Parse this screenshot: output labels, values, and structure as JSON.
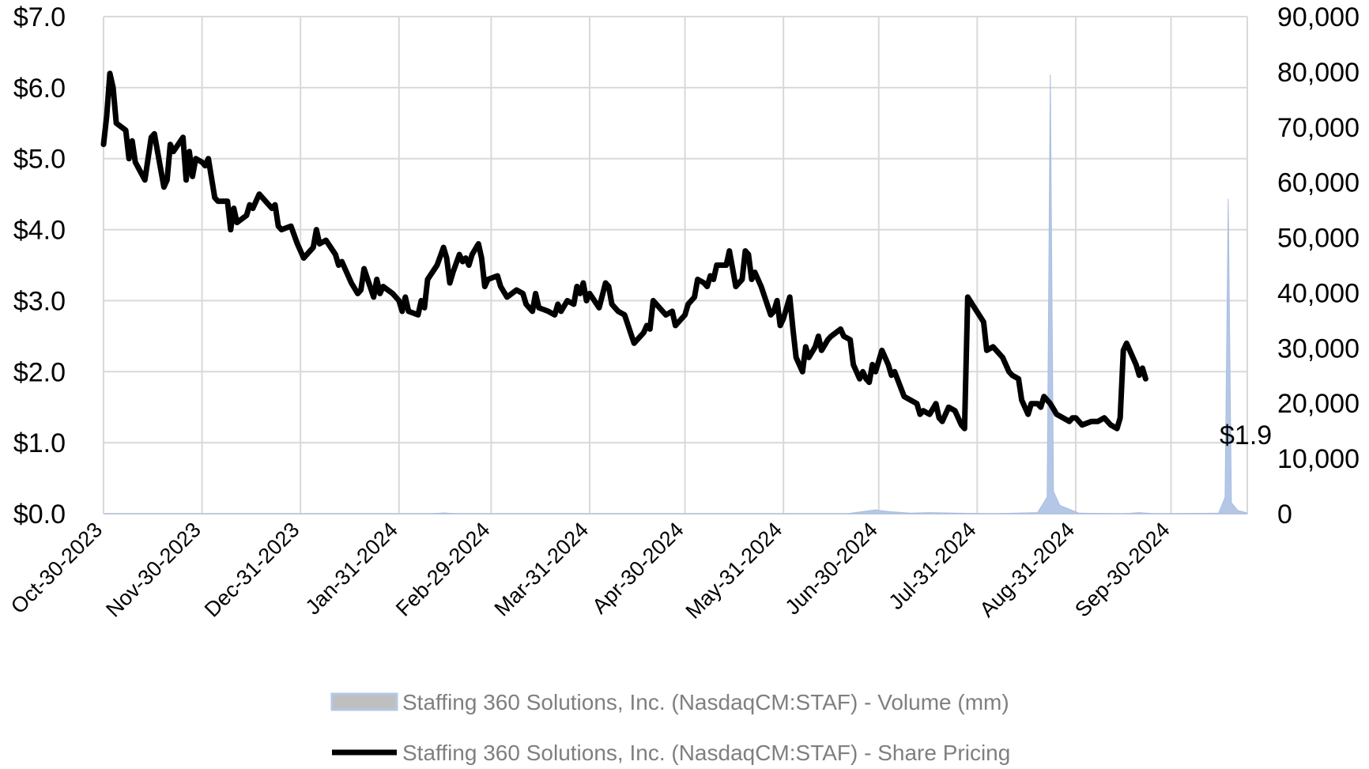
{
  "chart_data": {
    "type": "line",
    "title": "",
    "xlabel": "",
    "ylabel": "",
    "x_start": "2023-10-30",
    "x_end": "2024-10-24",
    "x_ticks": [
      "Oct-30-2023",
      "Nov-30-2023",
      "Dec-31-2023",
      "Jan-31-2024",
      "Feb-29-2024",
      "Mar-31-2024",
      "Apr-30-2024",
      "May-31-2024",
      "Jun-30-2024",
      "Jul-31-2024",
      "Aug-31-2024",
      "Sep-30-2024"
    ],
    "y_left": {
      "min": 0,
      "max": 7,
      "step": 1,
      "ticks": [
        "$0.0",
        "$1.0",
        "$2.0",
        "$3.0",
        "$4.0",
        "$5.0",
        "$6.0",
        "$7.0"
      ]
    },
    "y_right": {
      "min": 0,
      "max": 90000,
      "step": 10000,
      "ticks": [
        "0",
        "10,000",
        "20,000",
        "30,000",
        "40,000",
        "50,000",
        "60,000",
        "70,000",
        "80,000",
        "90,000"
      ]
    },
    "grid": true,
    "legend_position": "bottom",
    "end_label": "$1.9",
    "series": [
      {
        "name": "Staffing 360 Solutions, Inc. (NasdaqCM:STAF) - Volume (mm)",
        "type": "area",
        "axis": "right",
        "color": "#b4c7e7",
        "points": [
          [
            "2023-10-30",
            0
          ],
          [
            "2024-02-10",
            0
          ],
          [
            "2024-02-14",
            150
          ],
          [
            "2024-02-18",
            0
          ],
          [
            "2024-06-20",
            0
          ],
          [
            "2024-06-29",
            700
          ],
          [
            "2024-07-03",
            400
          ],
          [
            "2024-07-10",
            100
          ],
          [
            "2024-07-16",
            200
          ],
          [
            "2024-07-24",
            100
          ],
          [
            "2024-08-05",
            0
          ],
          [
            "2024-08-19",
            200
          ],
          [
            "2024-08-22",
            3000
          ],
          [
            "2024-08-23",
            79500
          ],
          [
            "2024-08-24",
            4000
          ],
          [
            "2024-08-26",
            1500
          ],
          [
            "2024-08-29",
            800
          ],
          [
            "2024-09-01",
            100
          ],
          [
            "2024-09-15",
            0
          ],
          [
            "2024-09-20",
            200
          ],
          [
            "2024-09-25",
            0
          ],
          [
            "2024-10-15",
            100
          ],
          [
            "2024-10-17",
            3000
          ],
          [
            "2024-10-18",
            57000
          ],
          [
            "2024-10-19",
            2000
          ],
          [
            "2024-10-21",
            600
          ],
          [
            "2024-10-23",
            300
          ],
          [
            "2024-10-24",
            100
          ]
        ]
      },
      {
        "name": "Staffing 360 Solutions, Inc. (NasdaqCM:STAF) - Share Pricing",
        "type": "line",
        "axis": "left",
        "color": "#000000",
        "points": [
          [
            "2023-10-30",
            5.2
          ],
          [
            "2023-10-31",
            5.6
          ],
          [
            "2023-11-01",
            6.2
          ],
          [
            "2023-11-02",
            6.0
          ],
          [
            "2023-11-03",
            5.5
          ],
          [
            "2023-11-06",
            5.4
          ],
          [
            "2023-11-07",
            5.0
          ],
          [
            "2023-11-08",
            5.25
          ],
          [
            "2023-11-09",
            4.95
          ],
          [
            "2023-11-12",
            4.7
          ],
          [
            "2023-11-14",
            5.3
          ],
          [
            "2023-11-15",
            5.35
          ],
          [
            "2023-11-18",
            4.6
          ],
          [
            "2023-11-19",
            4.7
          ],
          [
            "2023-11-20",
            5.2
          ],
          [
            "2023-11-21",
            5.1
          ],
          [
            "2023-11-24",
            5.3
          ],
          [
            "2023-11-25",
            4.7
          ],
          [
            "2023-11-26",
            5.1
          ],
          [
            "2023-11-27",
            4.75
          ],
          [
            "2023-11-28",
            5.0
          ],
          [
            "2023-11-30",
            4.95
          ],
          [
            "2023-12-01",
            4.9
          ],
          [
            "2023-12-02",
            5.0
          ],
          [
            "2023-12-04",
            4.45
          ],
          [
            "2023-12-05",
            4.4
          ],
          [
            "2023-12-08",
            4.4
          ],
          [
            "2023-12-09",
            4.0
          ],
          [
            "2023-12-10",
            4.3
          ],
          [
            "2023-12-11",
            4.1
          ],
          [
            "2023-12-14",
            4.2
          ],
          [
            "2023-12-15",
            4.35
          ],
          [
            "2023-12-16",
            4.3
          ],
          [
            "2023-12-18",
            4.5
          ],
          [
            "2023-12-22",
            4.3
          ],
          [
            "2023-12-23",
            4.35
          ],
          [
            "2023-12-24",
            4.05
          ],
          [
            "2023-12-25",
            4.0
          ],
          [
            "2023-12-28",
            4.05
          ],
          [
            "2023-12-30",
            3.8
          ],
          [
            "2024-01-01",
            3.6
          ],
          [
            "2024-01-04",
            3.75
          ],
          [
            "2024-01-05",
            4.0
          ],
          [
            "2024-01-06",
            3.8
          ],
          [
            "2024-01-08",
            3.85
          ],
          [
            "2024-01-11",
            3.65
          ],
          [
            "2024-01-12",
            3.5
          ],
          [
            "2024-01-13",
            3.55
          ],
          [
            "2024-01-16",
            3.25
          ],
          [
            "2024-01-18",
            3.1
          ],
          [
            "2024-01-19",
            3.15
          ],
          [
            "2024-01-20",
            3.45
          ],
          [
            "2024-01-23",
            3.05
          ],
          [
            "2024-01-24",
            3.3
          ],
          [
            "2024-01-25",
            3.1
          ],
          [
            "2024-01-26",
            3.2
          ],
          [
            "2024-01-29",
            3.1
          ],
          [
            "2024-01-31",
            3.0
          ],
          [
            "2024-02-01",
            2.85
          ],
          [
            "2024-02-02",
            3.05
          ],
          [
            "2024-02-03",
            2.85
          ],
          [
            "2024-02-06",
            2.8
          ],
          [
            "2024-02-07",
            3.0
          ],
          [
            "2024-02-08",
            2.9
          ],
          [
            "2024-02-09",
            3.3
          ],
          [
            "2024-02-12",
            3.5
          ],
          [
            "2024-02-14",
            3.75
          ],
          [
            "2024-02-15",
            3.6
          ],
          [
            "2024-02-16",
            3.25
          ],
          [
            "2024-02-17",
            3.4
          ],
          [
            "2024-02-19",
            3.65
          ],
          [
            "2024-02-20",
            3.55
          ],
          [
            "2024-02-21",
            3.6
          ],
          [
            "2024-02-22",
            3.5
          ],
          [
            "2024-02-23",
            3.65
          ],
          [
            "2024-02-25",
            3.8
          ],
          [
            "2024-02-26",
            3.6
          ],
          [
            "2024-02-27",
            3.2
          ],
          [
            "2024-02-28",
            3.3
          ],
          [
            "2024-03-02",
            3.35
          ],
          [
            "2024-03-03",
            3.2
          ],
          [
            "2024-03-05",
            3.05
          ],
          [
            "2024-03-08",
            3.15
          ],
          [
            "2024-03-10",
            3.1
          ],
          [
            "2024-03-11",
            2.95
          ],
          [
            "2024-03-13",
            2.85
          ],
          [
            "2024-03-14",
            3.1
          ],
          [
            "2024-03-15",
            2.9
          ],
          [
            "2024-03-18",
            2.85
          ],
          [
            "2024-03-20",
            2.8
          ],
          [
            "2024-03-21",
            2.95
          ],
          [
            "2024-03-22",
            2.85
          ],
          [
            "2024-03-24",
            3.0
          ],
          [
            "2024-03-26",
            2.95
          ],
          [
            "2024-03-27",
            3.2
          ],
          [
            "2024-03-28",
            3.1
          ],
          [
            "2024-03-29",
            3.25
          ],
          [
            "2024-03-30",
            3.0
          ],
          [
            "2024-03-31",
            3.1
          ],
          [
            "2024-04-03",
            2.9
          ],
          [
            "2024-04-05",
            3.25
          ],
          [
            "2024-04-06",
            3.2
          ],
          [
            "2024-04-07",
            2.95
          ],
          [
            "2024-04-09",
            2.85
          ],
          [
            "2024-04-11",
            2.8
          ],
          [
            "2024-04-14",
            2.4
          ],
          [
            "2024-04-16",
            2.5
          ],
          [
            "2024-04-17",
            2.55
          ],
          [
            "2024-04-18",
            2.65
          ],
          [
            "2024-04-19",
            2.6
          ],
          [
            "2024-04-20",
            3.0
          ],
          [
            "2024-04-22",
            2.9
          ],
          [
            "2024-04-24",
            2.8
          ],
          [
            "2024-04-26",
            2.85
          ],
          [
            "2024-04-27",
            2.65
          ],
          [
            "2024-04-30",
            2.8
          ],
          [
            "2024-05-01",
            2.95
          ],
          [
            "2024-05-03",
            3.05
          ],
          [
            "2024-05-04",
            3.3
          ],
          [
            "2024-05-06",
            3.25
          ],
          [
            "2024-05-07",
            3.2
          ],
          [
            "2024-05-08",
            3.35
          ],
          [
            "2024-05-09",
            3.3
          ],
          [
            "2024-05-10",
            3.5
          ],
          [
            "2024-05-13",
            3.5
          ],
          [
            "2024-05-14",
            3.7
          ],
          [
            "2024-05-15",
            3.45
          ],
          [
            "2024-05-16",
            3.2
          ],
          [
            "2024-05-18",
            3.3
          ],
          [
            "2024-05-19",
            3.7
          ],
          [
            "2024-05-20",
            3.65
          ],
          [
            "2024-05-21",
            3.3
          ],
          [
            "2024-05-22",
            3.4
          ],
          [
            "2024-05-24",
            3.2
          ],
          [
            "2024-05-27",
            2.8
          ],
          [
            "2024-05-28",
            2.85
          ],
          [
            "2024-05-29",
            3.0
          ],
          [
            "2024-05-30",
            2.65
          ],
          [
            "2024-05-31",
            2.75
          ],
          [
            "2024-06-02",
            3.05
          ],
          [
            "2024-06-03",
            2.6
          ],
          [
            "2024-06-04",
            2.2
          ],
          [
            "2024-06-06",
            2.0
          ],
          [
            "2024-06-07",
            2.35
          ],
          [
            "2024-06-08",
            2.2
          ],
          [
            "2024-06-10",
            2.35
          ],
          [
            "2024-06-11",
            2.5
          ],
          [
            "2024-06-12",
            2.3
          ],
          [
            "2024-06-14",
            2.45
          ],
          [
            "2024-06-15",
            2.5
          ],
          [
            "2024-06-18",
            2.6
          ],
          [
            "2024-06-19",
            2.5
          ],
          [
            "2024-06-21",
            2.45
          ],
          [
            "2024-06-22",
            2.1
          ],
          [
            "2024-06-24",
            1.9
          ],
          [
            "2024-06-25",
            2.0
          ],
          [
            "2024-06-26",
            1.9
          ],
          [
            "2024-06-27",
            1.85
          ],
          [
            "2024-06-28",
            2.1
          ],
          [
            "2024-06-29",
            2.0
          ],
          [
            "2024-07-01",
            2.3
          ],
          [
            "2024-07-03",
            2.1
          ],
          [
            "2024-07-04",
            1.95
          ],
          [
            "2024-07-05",
            2.0
          ],
          [
            "2024-07-08",
            1.65
          ],
          [
            "2024-07-10",
            1.6
          ],
          [
            "2024-07-12",
            1.55
          ],
          [
            "2024-07-13",
            1.4
          ],
          [
            "2024-07-14",
            1.45
          ],
          [
            "2024-07-16",
            1.4
          ],
          [
            "2024-07-18",
            1.55
          ],
          [
            "2024-07-19",
            1.35
          ],
          [
            "2024-07-20",
            1.3
          ],
          [
            "2024-07-22",
            1.5
          ],
          [
            "2024-07-24",
            1.45
          ],
          [
            "2024-07-26",
            1.25
          ],
          [
            "2024-07-27",
            1.2
          ],
          [
            "2024-07-28",
            3.05
          ],
          [
            "2024-08-02",
            2.7
          ],
          [
            "2024-08-03",
            2.3
          ],
          [
            "2024-08-05",
            2.35
          ],
          [
            "2024-08-08",
            2.2
          ],
          [
            "2024-08-10",
            2.0
          ],
          [
            "2024-08-11",
            1.95
          ],
          [
            "2024-08-13",
            1.9
          ],
          [
            "2024-08-14",
            1.6
          ],
          [
            "2024-08-16",
            1.4
          ],
          [
            "2024-08-17",
            1.55
          ],
          [
            "2024-08-19",
            1.55
          ],
          [
            "2024-08-20",
            1.5
          ],
          [
            "2024-08-21",
            1.65
          ],
          [
            "2024-08-23",
            1.55
          ],
          [
            "2024-08-25",
            1.4
          ],
          [
            "2024-08-27",
            1.35
          ],
          [
            "2024-08-29",
            1.3
          ],
          [
            "2024-08-30",
            1.35
          ],
          [
            "2024-08-31",
            1.35
          ],
          [
            "2024-09-02",
            1.25
          ],
          [
            "2024-09-05",
            1.3
          ],
          [
            "2024-09-07",
            1.3
          ],
          [
            "2024-09-09",
            1.35
          ],
          [
            "2024-09-11",
            1.25
          ],
          [
            "2024-09-13",
            1.2
          ],
          [
            "2024-09-14",
            1.35
          ],
          [
            "2024-09-15",
            2.3
          ],
          [
            "2024-09-16",
            2.4
          ],
          [
            "2024-09-19",
            2.1
          ],
          [
            "2024-09-20",
            1.95
          ],
          [
            "2024-09-21",
            2.05
          ],
          [
            "2024-09-22",
            1.9
          ]
        ]
      }
    ]
  }
}
